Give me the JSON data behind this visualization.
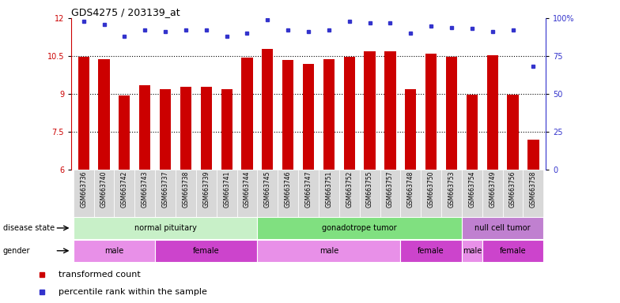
{
  "title": "GDS4275 / 203139_at",
  "samples": [
    "GSM663736",
    "GSM663740",
    "GSM663742",
    "GSM663743",
    "GSM663737",
    "GSM663738",
    "GSM663739",
    "GSM663741",
    "GSM663744",
    "GSM663745",
    "GSM663746",
    "GSM663747",
    "GSM663751",
    "GSM663752",
    "GSM663755",
    "GSM663757",
    "GSM663748",
    "GSM663750",
    "GSM663753",
    "GSM663754",
    "GSM663749",
    "GSM663756",
    "GSM663758"
  ],
  "transformed_count": [
    10.48,
    10.38,
    8.93,
    9.35,
    9.18,
    9.28,
    9.28,
    9.18,
    10.43,
    10.78,
    10.33,
    10.18,
    10.38,
    10.48,
    10.68,
    10.68,
    9.18,
    10.58,
    10.48,
    8.98,
    10.53,
    8.98,
    7.18
  ],
  "percentile_rank": [
    98,
    96,
    88,
    92,
    91,
    92,
    92,
    88,
    90,
    99,
    92,
    91,
    92,
    98,
    97,
    97,
    90,
    95,
    94,
    93,
    91,
    92,
    68
  ],
  "bar_color": "#cc0000",
  "dot_color": "#3333cc",
  "ylim_left": [
    6,
    12
  ],
  "ylim_right": [
    0,
    100
  ],
  "yticks_left": [
    6,
    7.5,
    9,
    10.5,
    12
  ],
  "ytick_labels_left": [
    "6",
    "7.5",
    "9",
    "10.5",
    "12"
  ],
  "yticks_right": [
    0,
    25,
    50,
    75,
    100
  ],
  "ytick_labels_right": [
    "0",
    "25",
    "50",
    "75",
    "100%"
  ],
  "grid_values": [
    7.5,
    9.0,
    10.5
  ],
  "disease_groups": [
    {
      "label": "normal pituitary",
      "start": 0,
      "end": 9,
      "color": "#c8f0c8"
    },
    {
      "label": "gonadotrope tumor",
      "start": 9,
      "end": 19,
      "color": "#80e080"
    },
    {
      "label": "null cell tumor",
      "start": 19,
      "end": 23,
      "color": "#c080d0"
    }
  ],
  "gender_groups": [
    {
      "label": "male",
      "start": 0,
      "end": 4,
      "color": "#e890e8"
    },
    {
      "label": "female",
      "start": 4,
      "end": 9,
      "color": "#cc44cc"
    },
    {
      "label": "male",
      "start": 9,
      "end": 16,
      "color": "#e890e8"
    },
    {
      "label": "female",
      "start": 16,
      "end": 19,
      "color": "#cc44cc"
    },
    {
      "label": "male",
      "start": 19,
      "end": 20,
      "color": "#e890e8"
    },
    {
      "label": "female",
      "start": 20,
      "end": 23,
      "color": "#cc44cc"
    }
  ],
  "disease_label": "disease state",
  "gender_label": "gender",
  "legend_items": [
    {
      "color": "#cc0000",
      "label": "transformed count"
    },
    {
      "color": "#3333cc",
      "label": "percentile rank within the sample"
    }
  ],
  "bg_color": "#ffffff",
  "chart_bg": "#ffffff",
  "tick_bg": "#d8d8d8"
}
